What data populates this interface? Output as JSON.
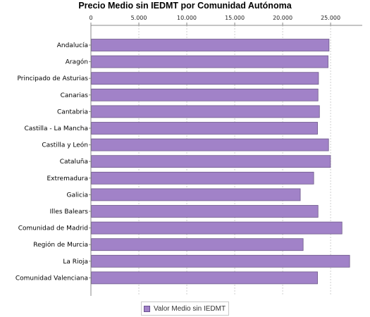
{
  "chart_data": {
    "type": "bar",
    "orientation": "horizontal",
    "title": "Precio Medio sin IEDMT por Comunidad Autónoma",
    "xlabel": "",
    "ylabel": "",
    "xlim": [
      0,
      28300
    ],
    "x_ticks": [
      0,
      5000,
      10000,
      15000,
      20000,
      25000
    ],
    "x_tick_labels": [
      "0",
      "5.000",
      "10.000",
      "15.000",
      "20.000",
      "25.000"
    ],
    "grid": "vertical dashed",
    "legend_position": "bottom",
    "categories": [
      "Andalucía",
      "Aragón",
      "Principado de Asturias",
      "Canarias",
      "Cantabria",
      "Castilla - La Mancha",
      "Castilla y León",
      "Cataluña",
      "Extremadura",
      "Galicia",
      "Illes Balears",
      "Comunidad de Madrid",
      "Región de Murcia",
      "La Rioja",
      "Comunidad Valenciana"
    ],
    "series": [
      {
        "name": "Valor Medio sin IEDMT",
        "color": "#a182c8",
        "values": [
          24800,
          24700,
          23700,
          23650,
          23800,
          23600,
          24750,
          24950,
          23200,
          21800,
          23650,
          26150,
          22100,
          26950,
          23600
        ]
      }
    ]
  }
}
